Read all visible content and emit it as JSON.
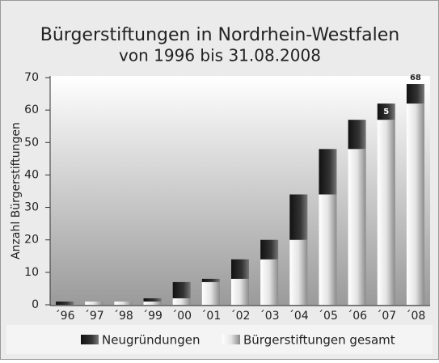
{
  "chart_data": {
    "type": "stacked-bar",
    "title": "Bürgerstiftungen in Nordrhein-Westfalen",
    "subtitle": "von 1996 bis 31.08.2008",
    "y_label": "Anzahl Bürgerstiftungen",
    "categories": [
      "´96",
      "´97",
      "´98",
      "´99",
      "´00",
      "´01",
      "´02",
      "´03",
      "´04",
      "´05",
      "´06",
      "´07",
      "´08"
    ],
    "series": [
      {
        "name": "Neugründungen",
        "color": "#1e1e1e",
        "values": [
          1,
          0,
          0,
          1,
          5,
          1,
          6,
          6,
          14,
          14,
          9,
          5,
          6
        ],
        "value_labels": [
          null,
          null,
          null,
          null,
          null,
          null,
          null,
          null,
          null,
          null,
          null,
          "5",
          null
        ]
      },
      {
        "name": "Bürgerstiftungen gesamt",
        "color": "#d8d8d8",
        "values": [
          0,
          1,
          1,
          1,
          2,
          7,
          8,
          14,
          20,
          34,
          48,
          57,
          62
        ]
      }
    ],
    "total_label": {
      "category": "´08",
      "label": "68"
    },
    "ylim": [
      0,
      70
    ],
    "yticks": [
      0,
      10,
      20,
      30,
      40,
      50,
      60,
      70
    ],
    "grid": false
  }
}
